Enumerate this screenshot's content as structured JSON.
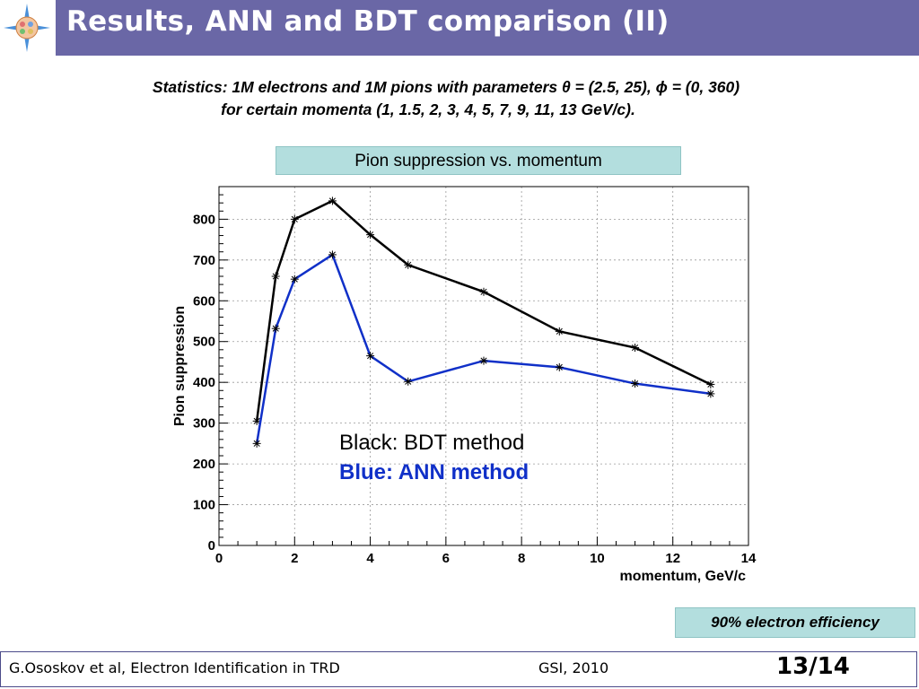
{
  "slide": {
    "title": "Results, ANN and BDT comparison (II)",
    "stats_line1": "Statistics:  1M electrons and 1M pions with parameters θ = (2.5, 25), ϕ = (0, 360)",
    "stats_line2": "for certain momenta (1, 1.5, 2, 3, 4, 5, 7, 9, 11, 13 GeV/c).",
    "efficiency_note": "90% electron efficiency",
    "footer_left": "G.Ososkov et al, Electron Identification in TRD",
    "footer_mid": "GSI, 2010",
    "page_number": "13/14"
  },
  "colors": {
    "title_bar": "#6a67a6",
    "box_fill": "#b3dede",
    "bdt": "#000000",
    "ann": "#1030c8"
  },
  "chart_data": {
    "type": "line",
    "title": "Pion suppression vs. momentum",
    "xlabel": "momentum, GeV/c",
    "ylabel": "Pion suppression",
    "xlim": [
      0,
      14
    ],
    "ylim": [
      0,
      880
    ],
    "xticks": [
      0,
      2,
      4,
      6,
      8,
      10,
      12,
      14
    ],
    "yticks": [
      0,
      100,
      200,
      300,
      400,
      500,
      600,
      700,
      800
    ],
    "grid": true,
    "x": [
      1,
      1.5,
      2,
      3,
      4,
      5,
      7,
      9,
      11,
      13
    ],
    "series": [
      {
        "name": "Black: BDT method",
        "color": "#000000",
        "values": [
          305,
          660,
          800,
          845,
          762,
          688,
          622,
          525,
          485,
          395
        ]
      },
      {
        "name": "Blue: ANN method",
        "color": "#1030c8",
        "values": [
          250,
          532,
          653,
          713,
          465,
          402,
          453,
          437,
          397,
          372
        ]
      }
    ]
  }
}
